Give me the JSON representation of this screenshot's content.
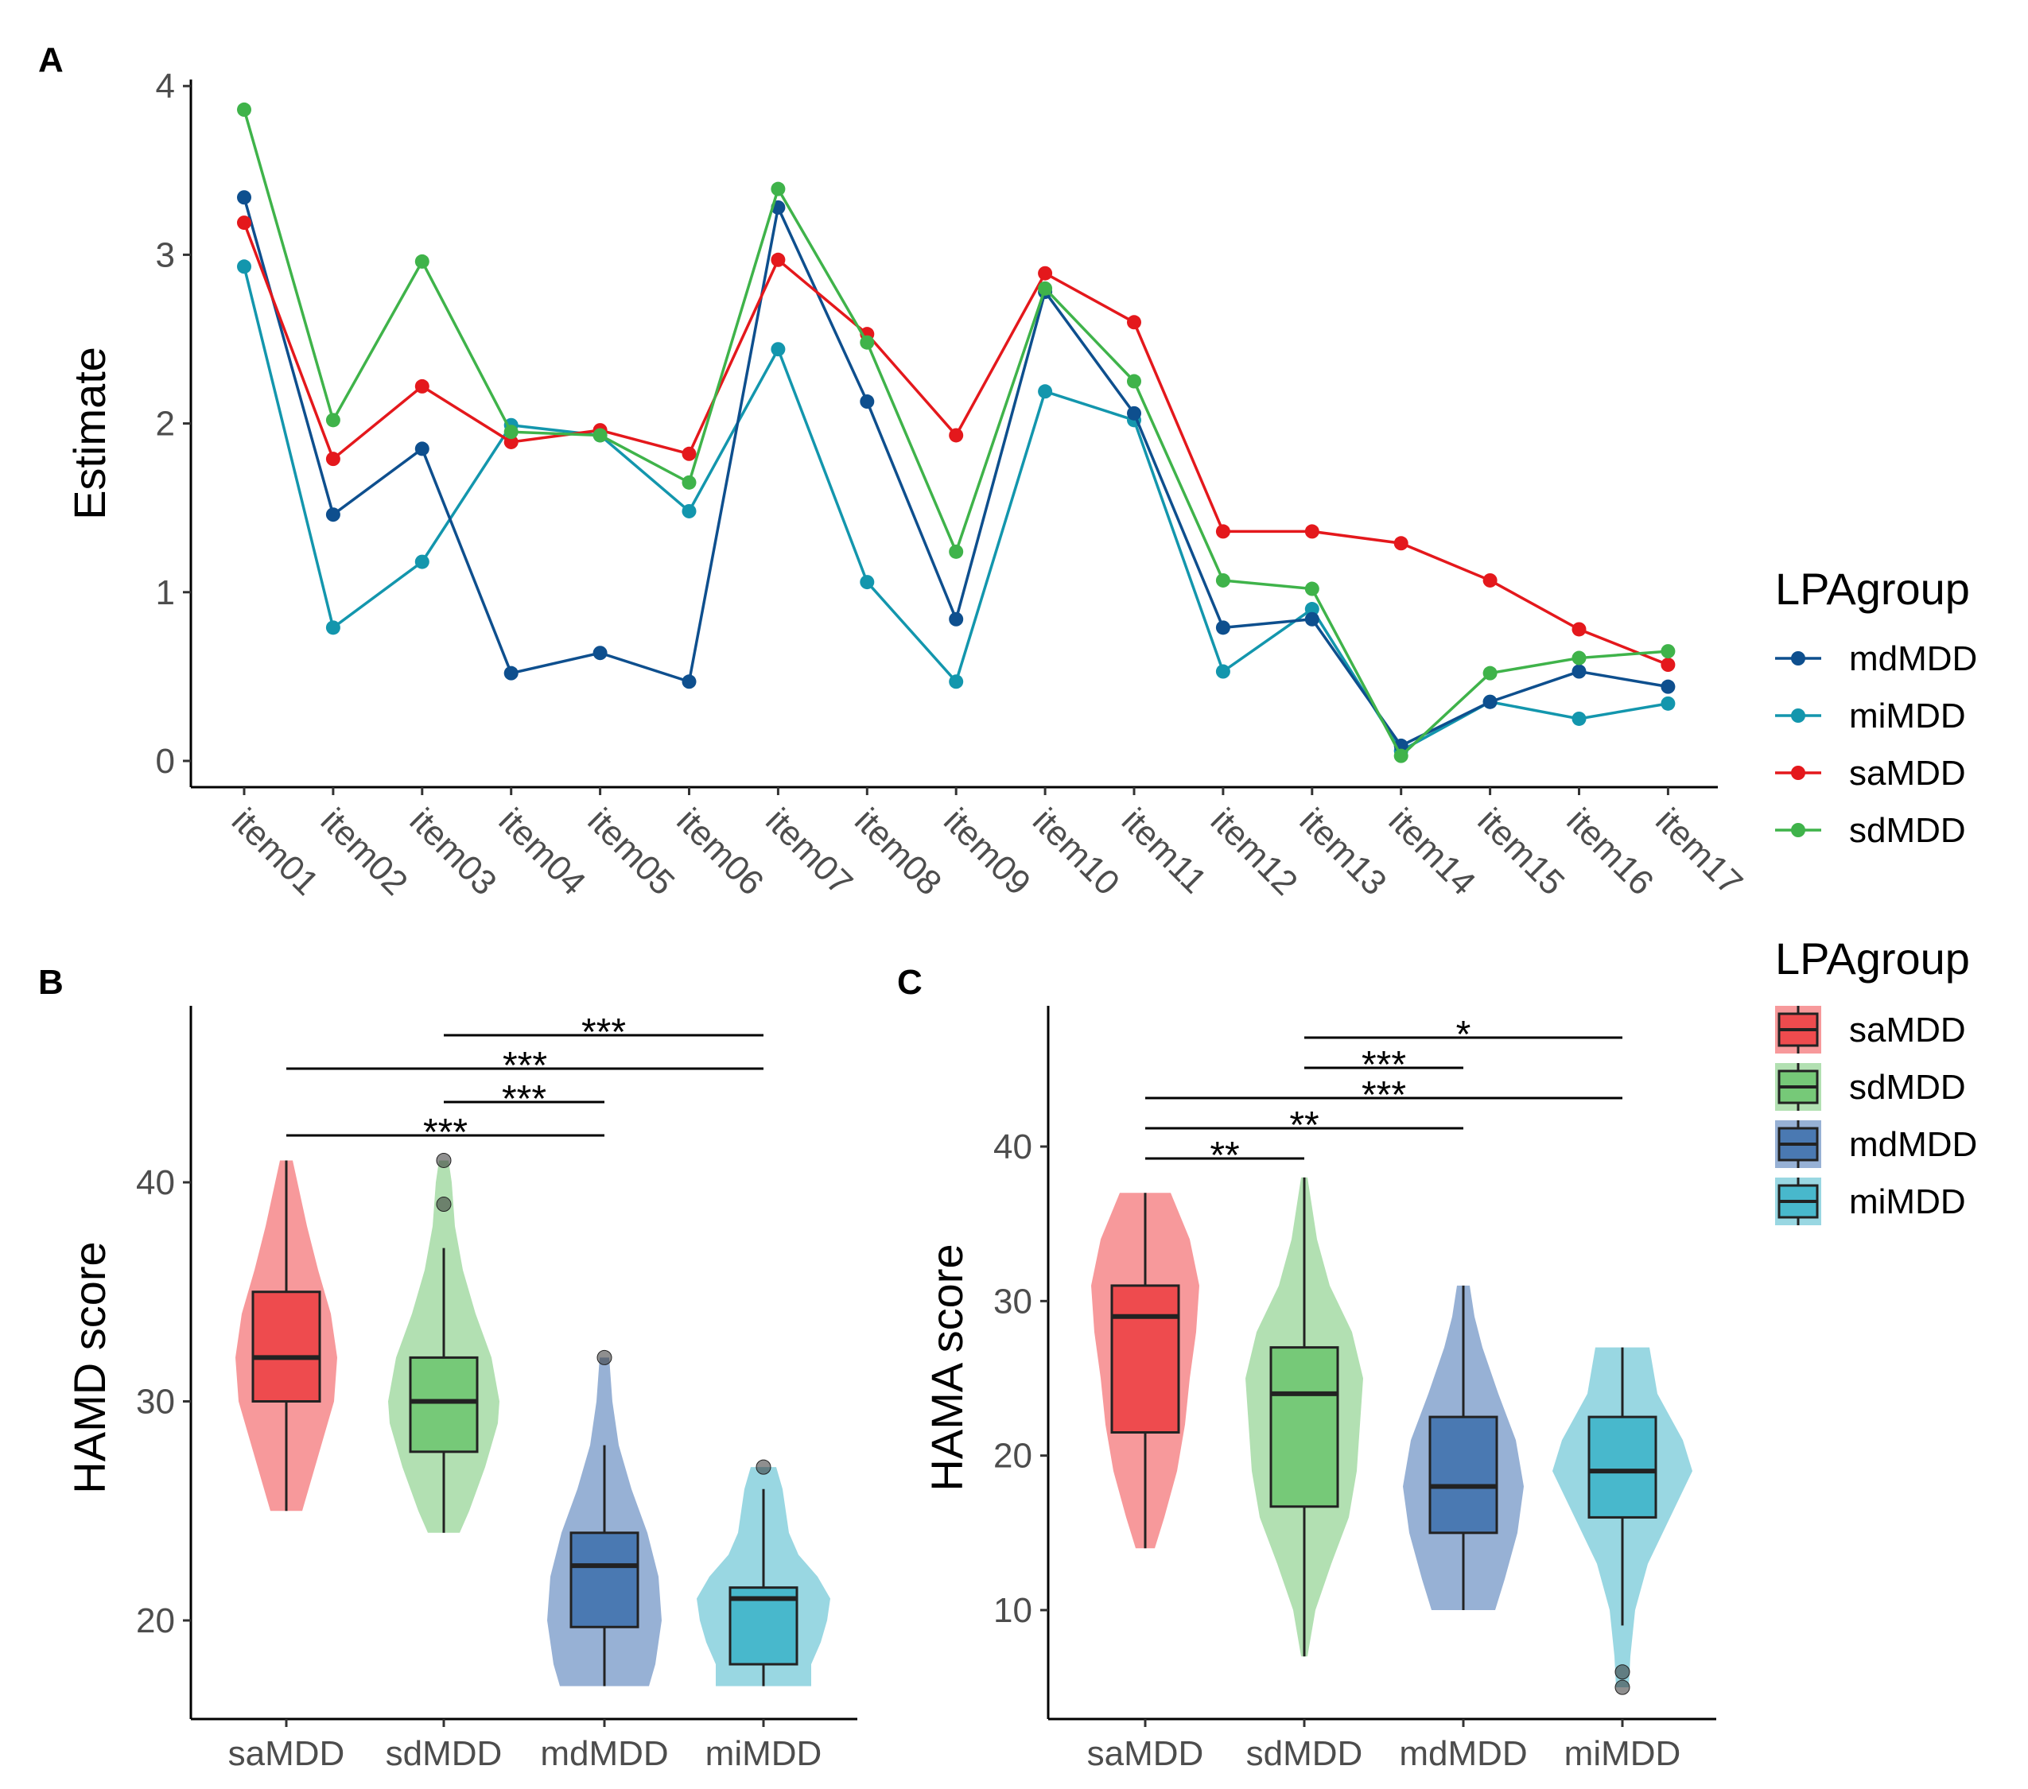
{
  "panels": {
    "A": {
      "letter": "A",
      "ylabel": "Estimate",
      "legend_title": "LPAgroup",
      "legend_entries": [
        "mdMDD",
        "miMDD",
        "saMDD",
        "sdMDD"
      ]
    },
    "B": {
      "letter": "B",
      "ylabel": "HAMD score",
      "legend_title": "LPAgroup",
      "legend_entries": [
        "saMDD",
        "sdMDD",
        "mdMDD",
        "miMDD"
      ]
    },
    "C": {
      "letter": "C",
      "ylabel": "HAMA score"
    }
  },
  "colors": {
    "mdMDD": "#0e4f8e",
    "miMDD": "#1396ad",
    "saMDD": "#e4181c",
    "sdMDD": "#3fb34a",
    "box_saMDD": "#ee4b4e",
    "box_sdMDD": "#76c978",
    "box_mdMDD": "#4a79b2",
    "box_miMDD": "#48b8cc",
    "violin_saMDD": "#f7999b",
    "violin_sdMDD": "#b2e0b2",
    "violin_mdMDD": "#97b1d5",
    "violin_miMDD": "#99d7e2"
  },
  "chart_data": [
    {
      "type": "line",
      "panel": "A",
      "x": [
        "item01",
        "item02",
        "item03",
        "item04",
        "item05",
        "item06",
        "item07",
        "item08",
        "item09",
        "item10",
        "item11",
        "item12",
        "item13",
        "item14",
        "item15",
        "item16",
        "item17"
      ],
      "ylabel": "Estimate",
      "ylim": [
        -0.15,
        4.05
      ],
      "yticks": [
        0,
        1,
        2,
        3,
        4
      ],
      "legend_position": "right",
      "grid": false,
      "series": [
        {
          "name": "mdMDD",
          "values": [
            3.34,
            1.46,
            1.85,
            0.52,
            0.64,
            0.47,
            3.28,
            2.13,
            0.84,
            2.78,
            2.06,
            0.79,
            0.84,
            0.09,
            0.35,
            0.53,
            0.44
          ]
        },
        {
          "name": "miMDD",
          "values": [
            2.93,
            0.79,
            1.18,
            1.99,
            1.93,
            1.48,
            2.44,
            1.06,
            0.47,
            2.19,
            2.02,
            0.53,
            0.9,
            0.06,
            0.35,
            0.25,
            0.34
          ]
        },
        {
          "name": "saMDD",
          "values": [
            3.19,
            1.79,
            2.22,
            1.89,
            1.96,
            1.82,
            2.97,
            2.53,
            1.93,
            2.89,
            2.6,
            1.36,
            1.36,
            1.29,
            1.07,
            0.78,
            0.57
          ]
        },
        {
          "name": "sdMDD",
          "values": [
            3.86,
            2.02,
            2.96,
            1.95,
            1.93,
            1.65,
            3.39,
            2.48,
            1.24,
            2.8,
            2.25,
            1.07,
            1.02,
            0.03,
            0.52,
            0.61,
            0.65
          ]
        }
      ]
    },
    {
      "type": "violin_box",
      "panel": "B",
      "categories": [
        "saMDD",
        "sdMDD",
        "mdMDD",
        "miMDD"
      ],
      "ylabel": "HAMD score",
      "ylim": [
        15.5,
        48
      ],
      "yticks": [
        20,
        30,
        40
      ],
      "legend_position": "right",
      "groups": [
        {
          "name": "saMDD",
          "min": 25,
          "q1": 30,
          "median": 32,
          "q3": 35,
          "max": 41,
          "outliers": [],
          "violin": {
            "lo": 25,
            "hi": 41,
            "widths": [
              [
                25,
                0.1
              ],
              [
                26,
                0.14
              ],
              [
                28,
                0.22
              ],
              [
                30,
                0.3
              ],
              [
                32,
                0.32
              ],
              [
                34,
                0.28
              ],
              [
                36,
                0.2
              ],
              [
                38,
                0.13
              ],
              [
                40,
                0.07
              ],
              [
                41,
                0.04
              ]
            ]
          }
        },
        {
          "name": "sdMDD",
          "min": 24,
          "q1": 27.7,
          "median": 30,
          "q3": 32,
          "max": 37,
          "outliers": [
            39,
            41
          ],
          "violin": {
            "lo": 24,
            "hi": 41,
            "widths": [
              [
                24,
                0.1
              ],
              [
                25,
                0.16
              ],
              [
                27,
                0.26
              ],
              [
                29,
                0.34
              ],
              [
                30,
                0.35
              ],
              [
                32,
                0.3
              ],
              [
                34,
                0.2
              ],
              [
                36,
                0.12
              ],
              [
                38,
                0.07
              ],
              [
                40,
                0.05
              ],
              [
                41,
                0.03
              ]
            ]
          }
        },
        {
          "name": "mdMDD",
          "min": 17,
          "q1": 19.7,
          "median": 22.5,
          "q3": 24,
          "max": 28,
          "outliers": [
            32
          ],
          "violin": {
            "lo": 17,
            "hi": 32,
            "widths": [
              [
                17,
                0.28
              ],
              [
                18,
                0.32
              ],
              [
                20,
                0.36
              ],
              [
                22,
                0.34
              ],
              [
                24,
                0.27
              ],
              [
                26,
                0.17
              ],
              [
                28,
                0.09
              ],
              [
                30,
                0.05
              ],
              [
                32,
                0.03
              ]
            ]
          }
        },
        {
          "name": "miMDD",
          "min": 17,
          "q1": 18,
          "median": 21,
          "q3": 21.5,
          "max": 26,
          "outliers": [
            27
          ],
          "violin": {
            "lo": 17,
            "hi": 27,
            "widths": [
              [
                17,
                0.3
              ],
              [
                18,
                0.3
              ],
              [
                19,
                0.36
              ],
              [
                20,
                0.4
              ],
              [
                21,
                0.42
              ],
              [
                22,
                0.34
              ],
              [
                23,
                0.22
              ],
              [
                24,
                0.16
              ],
              [
                25,
                0.14
              ],
              [
                26,
                0.12
              ],
              [
                27,
                0.08
              ]
            ]
          }
        }
      ],
      "significance": [
        {
          "from": "miMDD",
          "to": "sdMDD",
          "label": "***"
        },
        {
          "from": "saMDD",
          "to": "miMDD",
          "label": "***"
        },
        {
          "from": "sdMDD",
          "to": "mdMDD",
          "label": "***"
        },
        {
          "from": "saMDD",
          "to": "mdMDD",
          "label": "***"
        }
      ]
    },
    {
      "type": "violin_box",
      "panel": "C",
      "categories": [
        "saMDD",
        "sdMDD",
        "mdMDD",
        "miMDD"
      ],
      "ylabel": "HAMA score",
      "ylim": [
        3,
        50
      ],
      "yticks": [
        10,
        20,
        30,
        40
      ],
      "legend_position": "right",
      "groups": [
        {
          "name": "saMDD",
          "min": 14,
          "q1": 21.5,
          "median": 29,
          "q3": 31,
          "max": 37,
          "outliers": [],
          "violin": {
            "lo": 14,
            "hi": 37,
            "widths": [
              [
                14,
                0.06
              ],
              [
                16,
                0.12
              ],
              [
                19,
                0.2
              ],
              [
                22,
                0.25
              ],
              [
                25,
                0.28
              ],
              [
                28,
                0.32
              ],
              [
                31,
                0.34
              ],
              [
                34,
                0.28
              ],
              [
                36,
                0.2
              ],
              [
                37,
                0.16
              ]
            ]
          }
        },
        {
          "name": "sdMDD",
          "min": 7,
          "q1": 16.7,
          "median": 24,
          "q3": 27,
          "max": 38,
          "outliers": [],
          "violin": {
            "lo": 7,
            "hi": 38,
            "widths": [
              [
                7,
                0.02
              ],
              [
                10,
                0.07
              ],
              [
                13,
                0.17
              ],
              [
                16,
                0.28
              ],
              [
                19,
                0.33
              ],
              [
                22,
                0.35
              ],
              [
                25,
                0.37
              ],
              [
                28,
                0.3
              ],
              [
                31,
                0.16
              ],
              [
                34,
                0.08
              ],
              [
                38,
                0.02
              ]
            ]
          }
        },
        {
          "name": "mdMDD",
          "min": 10,
          "q1": 15,
          "median": 18,
          "q3": 22.5,
          "max": 31,
          "outliers": [],
          "violin": {
            "lo": 10,
            "hi": 31,
            "widths": [
              [
                10,
                0.2
              ],
              [
                12,
                0.26
              ],
              [
                15,
                0.34
              ],
              [
                18,
                0.38
              ],
              [
                21,
                0.33
              ],
              [
                24,
                0.22
              ],
              [
                27,
                0.12
              ],
              [
                29,
                0.07
              ],
              [
                31,
                0.04
              ]
            ]
          }
        },
        {
          "name": "miMDD",
          "min": 9,
          "q1": 16,
          "median": 19,
          "q3": 22.5,
          "max": 27,
          "outliers": [
            5,
            6
          ],
          "violin": {
            "lo": 5,
            "hi": 27,
            "widths": [
              [
                5,
                0.04
              ],
              [
                7,
                0.05
              ],
              [
                10,
                0.08
              ],
              [
                13,
                0.16
              ],
              [
                16,
                0.3
              ],
              [
                19,
                0.44
              ],
              [
                21,
                0.38
              ],
              [
                24,
                0.22
              ],
              [
                27,
                0.17
              ]
            ]
          }
        }
      ],
      "significance": [
        {
          "from": "sdMDD",
          "to": "miMDD",
          "label": "*"
        },
        {
          "from": "sdMDD",
          "to": "mdMDD",
          "label": "***"
        },
        {
          "from": "saMDD",
          "to": "miMDD",
          "label": "***"
        },
        {
          "from": "saMDD",
          "to": "mdMDD",
          "label": "**"
        },
        {
          "from": "saMDD",
          "to": "sdMDD",
          "label": "**"
        }
      ]
    }
  ]
}
